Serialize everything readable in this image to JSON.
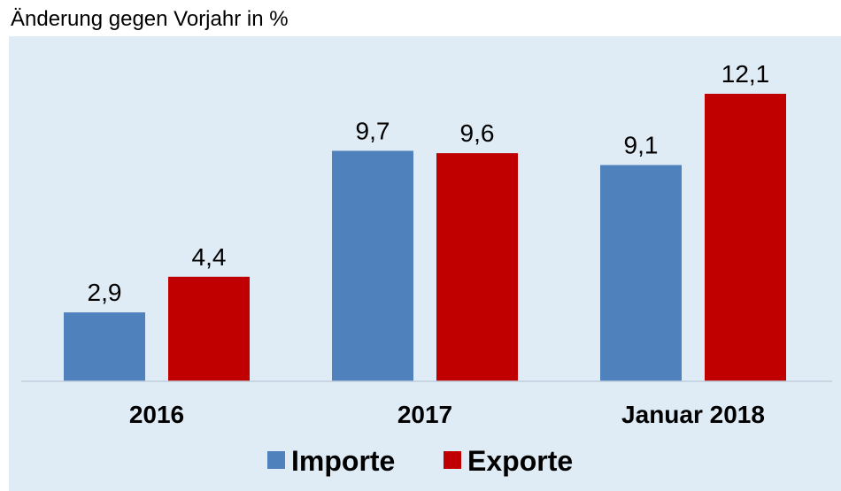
{
  "chart_data": {
    "type": "bar",
    "title": "Änderung gegen Vorjahr in %",
    "categories": [
      "2016",
      "2017",
      "Januar 2018"
    ],
    "series": [
      {
        "name": "Importe",
        "values": [
          2.9,
          9.7,
          9.1
        ],
        "labels": [
          "2,9",
          "9,7",
          "9,1"
        ],
        "color": "#4f81bd"
      },
      {
        "name": "Exporte",
        "values": [
          4.4,
          9.6,
          12.1
        ],
        "labels": [
          "4,4",
          "9,6",
          "12,1"
        ],
        "color": "#c00000"
      }
    ],
    "ylim": [
      0,
      12.1
    ],
    "grid": false,
    "legend_position": "bottom",
    "colors": {
      "plot_background": "#dfecf5",
      "baseline": "#bfcfdc"
    }
  }
}
